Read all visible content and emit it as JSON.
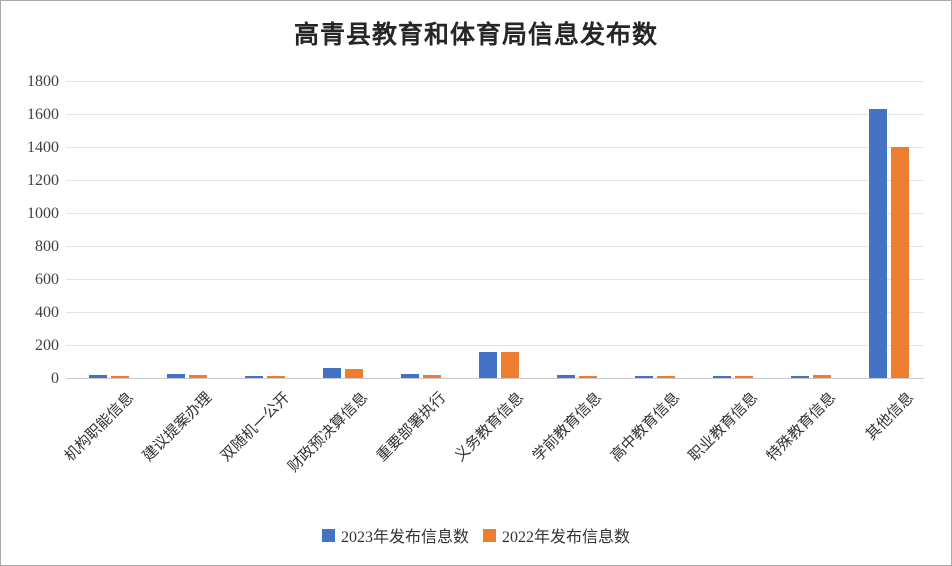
{
  "page": {
    "background": "#ffffff",
    "border_color": "#ababab"
  },
  "styles": {
    "gridline_color": "#e4e4e4",
    "axis_line_color": "#c9c9c9",
    "tick_label_color": "#404040",
    "x_label_color": "#333333",
    "title_color": "#262626"
  },
  "chart_data": {
    "type": "bar",
    "title": "高青县教育和体育局信息发布数",
    "categories": [
      "机构职能信息",
      "建议提案办理",
      "双随机一公开",
      "财政预决算信息",
      "重要部署执行",
      "义务教育信息",
      "学前教育信息",
      "高中教育信息",
      "职业教育信息",
      "特殊教育信息",
      "其他信息"
    ],
    "series": [
      {
        "name": "2023年发布信息数",
        "color": "#4472C4",
        "values": [
          20,
          22,
          12,
          60,
          25,
          160,
          20,
          14,
          14,
          14,
          1630
        ]
      },
      {
        "name": "2022年发布信息数",
        "color": "#ED7D31",
        "values": [
          12,
          20,
          10,
          55,
          20,
          160,
          12,
          15,
          14,
          16,
          1400
        ]
      }
    ],
    "xlabel": "",
    "ylabel": "",
    "ylim": [
      0,
      1800
    ],
    "yticks": [
      0,
      200,
      400,
      600,
      800,
      1000,
      1200,
      1400,
      1600,
      1800
    ],
    "grid": true,
    "legend_position": "bottom"
  }
}
